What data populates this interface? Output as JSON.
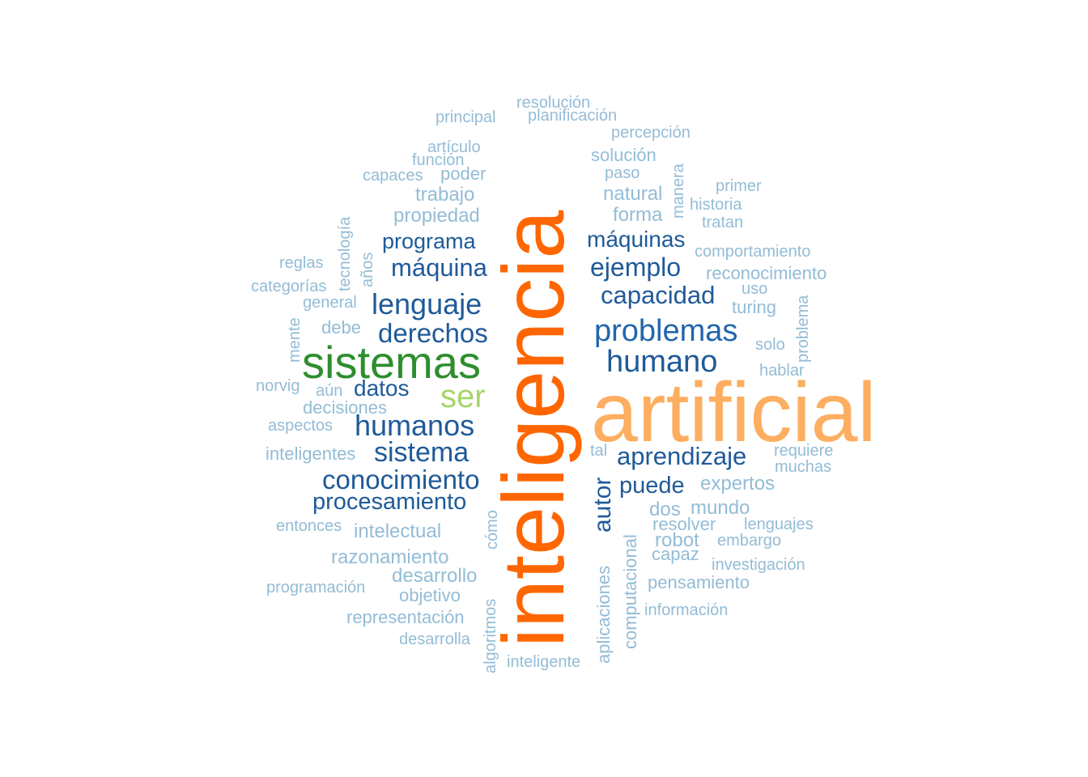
{
  "words": [
    {
      "text": "inteligencia",
      "color": "#ff6600"
    },
    {
      "text": "artificial",
      "color": "#fdae61"
    },
    {
      "text": "sistemas",
      "color": "#2d8e2d"
    },
    {
      "text": "ser",
      "color": "#a6d56a"
    },
    {
      "text": "problemas",
      "color": "#2166ac"
    },
    {
      "text": "humano",
      "color": "#1f5a99"
    },
    {
      "text": "humanos",
      "color": "#1f5a99"
    },
    {
      "text": "lenguaje",
      "color": "#1f5a99"
    },
    {
      "text": "derechos",
      "color": "#1f5a99"
    },
    {
      "text": "capacidad",
      "color": "#1f5a99"
    },
    {
      "text": "ejemplo",
      "color": "#1f5a99"
    },
    {
      "text": "máquina",
      "color": "#1f5a99"
    },
    {
      "text": "máquinas",
      "color": "#1f5a99"
    },
    {
      "text": "programa",
      "color": "#1f5a99"
    },
    {
      "text": "sistema",
      "color": "#1f5a99"
    },
    {
      "text": "conocimiento",
      "color": "#1f5a99"
    },
    {
      "text": "aprendizaje",
      "color": "#1f5a99"
    },
    {
      "text": "procesamiento",
      "color": "#1f5a99"
    },
    {
      "text": "datos",
      "color": "#1f5a99"
    },
    {
      "text": "puede",
      "color": "#1f5a99"
    },
    {
      "text": "autor",
      "color": "#1f5a99"
    },
    {
      "text": "resolución",
      "color": "#93bcd6"
    },
    {
      "text": "planificación",
      "color": "#93bcd6"
    },
    {
      "text": "principal",
      "color": "#93bcd6"
    },
    {
      "text": "percepción",
      "color": "#93bcd6"
    },
    {
      "text": "artículo",
      "color": "#93bcd6"
    },
    {
      "text": "solución",
      "color": "#93bcd6"
    },
    {
      "text": "función",
      "color": "#93bcd6"
    },
    {
      "text": "poder",
      "color": "#93bcd6"
    },
    {
      "text": "paso",
      "color": "#93bcd6"
    },
    {
      "text": "capaces",
      "color": "#93bcd6"
    },
    {
      "text": "manera",
      "color": "#93bcd6"
    },
    {
      "text": "primer",
      "color": "#93bcd6"
    },
    {
      "text": "trabajo",
      "color": "#93bcd6"
    },
    {
      "text": "natural",
      "color": "#93bcd6"
    },
    {
      "text": "historia",
      "color": "#93bcd6"
    },
    {
      "text": "propiedad",
      "color": "#93bcd6"
    },
    {
      "text": "forma",
      "color": "#93bcd6"
    },
    {
      "text": "tratan",
      "color": "#93bcd6"
    },
    {
      "text": "tecnología",
      "color": "#93bcd6"
    },
    {
      "text": "comportamiento",
      "color": "#93bcd6"
    },
    {
      "text": "reglas",
      "color": "#93bcd6"
    },
    {
      "text": "años",
      "color": "#93bcd6"
    },
    {
      "text": "reconocimiento",
      "color": "#93bcd6"
    },
    {
      "text": "categorías",
      "color": "#93bcd6"
    },
    {
      "text": "uso",
      "color": "#93bcd6"
    },
    {
      "text": "general",
      "color": "#93bcd6"
    },
    {
      "text": "turing",
      "color": "#93bcd6"
    },
    {
      "text": "problema",
      "color": "#93bcd6"
    },
    {
      "text": "mente",
      "color": "#93bcd6"
    },
    {
      "text": "debe",
      "color": "#93bcd6"
    },
    {
      "text": "solo",
      "color": "#93bcd6"
    },
    {
      "text": "hablar",
      "color": "#93bcd6"
    },
    {
      "text": "norvig",
      "color": "#93bcd6"
    },
    {
      "text": "aún",
      "color": "#93bcd6"
    },
    {
      "text": "decisiones",
      "color": "#93bcd6"
    },
    {
      "text": "aspectos",
      "color": "#93bcd6"
    },
    {
      "text": "tal",
      "color": "#93bcd6"
    },
    {
      "text": "requiere",
      "color": "#93bcd6"
    },
    {
      "text": "inteligentes",
      "color": "#93bcd6"
    },
    {
      "text": "muchas",
      "color": "#93bcd6"
    },
    {
      "text": "expertos",
      "color": "#93bcd6"
    },
    {
      "text": "dos",
      "color": "#93bcd6"
    },
    {
      "text": "mundo",
      "color": "#93bcd6"
    },
    {
      "text": "entonces",
      "color": "#93bcd6"
    },
    {
      "text": "cómo",
      "color": "#93bcd6"
    },
    {
      "text": "resolver",
      "color": "#93bcd6"
    },
    {
      "text": "lenguajes",
      "color": "#93bcd6"
    },
    {
      "text": "intelectual",
      "color": "#93bcd6"
    },
    {
      "text": "robot",
      "color": "#93bcd6"
    },
    {
      "text": "embargo",
      "color": "#93bcd6"
    },
    {
      "text": "capaz",
      "color": "#93bcd6"
    },
    {
      "text": "razonamiento",
      "color": "#93bcd6"
    },
    {
      "text": "investigación",
      "color": "#93bcd6"
    },
    {
      "text": "desarrollo",
      "color": "#93bcd6"
    },
    {
      "text": "pensamiento",
      "color": "#93bcd6"
    },
    {
      "text": "programación",
      "color": "#93bcd6"
    },
    {
      "text": "objetivo",
      "color": "#93bcd6"
    },
    {
      "text": "computacional",
      "color": "#93bcd6"
    },
    {
      "text": "aplicaciones",
      "color": "#93bcd6"
    },
    {
      "text": "información",
      "color": "#93bcd6"
    },
    {
      "text": "representación",
      "color": "#93bcd6"
    },
    {
      "text": "algoritmos",
      "color": "#93bcd6"
    },
    {
      "text": "desarrolla",
      "color": "#93bcd6"
    },
    {
      "text": "inteligente",
      "color": "#93bcd6"
    }
  ]
}
